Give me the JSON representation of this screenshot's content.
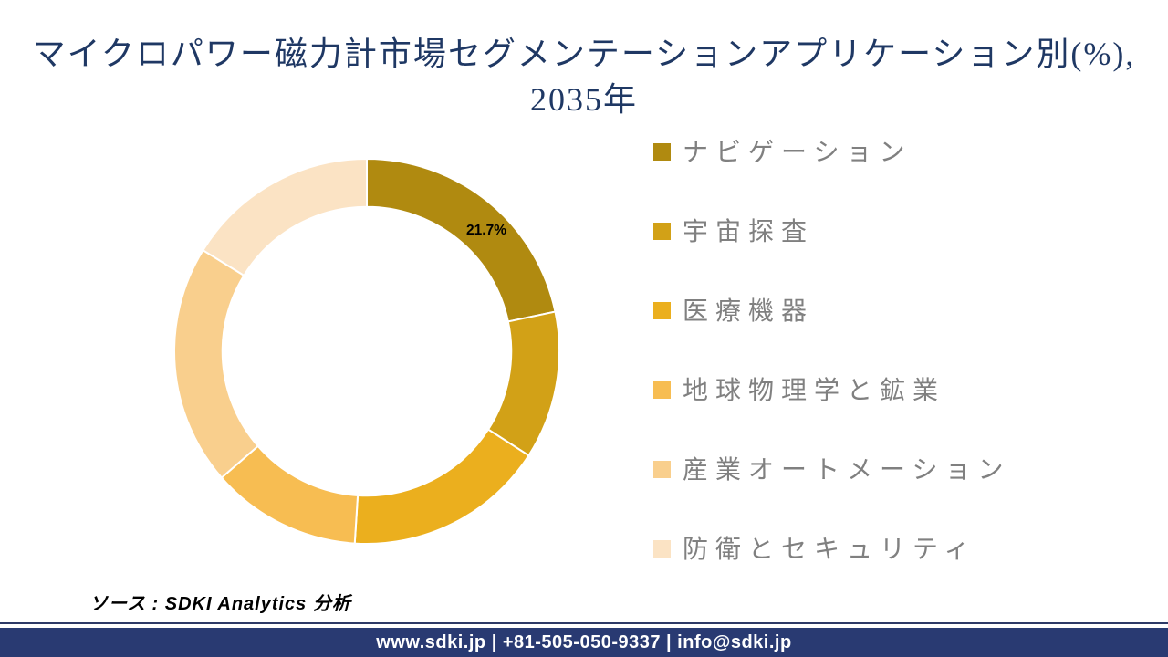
{
  "title": {
    "line1": "マイクロパワー磁力計市場セグメンテーションアプリケーション別(%),",
    "line2": "2035年",
    "color": "#1F3864"
  },
  "chart_data": {
    "type": "pie",
    "subtype": "donut",
    "title": "マイクロパワー磁力計市場セグメンテーションアプリケーション別(%), 2035年",
    "categories": [
      "ナビゲーション",
      "宇宙探査",
      "医療機器",
      "地球物理学と鉱業",
      "産業オートメーション",
      "防衛とセキュリティ"
    ],
    "values": [
      21.7,
      12.4,
      16.9,
      12.6,
      20.2,
      16.2
    ],
    "unit": "%",
    "colors": [
      "#B08A10",
      "#D2A117",
      "#EBAF1E",
      "#F7BD52",
      "#F9CF8D",
      "#FBE3C4"
    ],
    "data_labels": [
      {
        "slice": "ナビゲーション",
        "text": "21.7%"
      }
    ],
    "start_angle_deg": 0,
    "direction": "clockwise",
    "inner_radius_ratio": 0.75,
    "slice_separator_color": "#FFFFFF",
    "legend_position": "right",
    "legend_text_color": "#808080"
  },
  "source": {
    "text": "ソース : SDKI Analytics 分析"
  },
  "footer": {
    "text": "www.sdki.jp | +81-505-050-9337 | info@sdki.jp",
    "background": "#293A72",
    "text_color": "#FFFFFF"
  }
}
